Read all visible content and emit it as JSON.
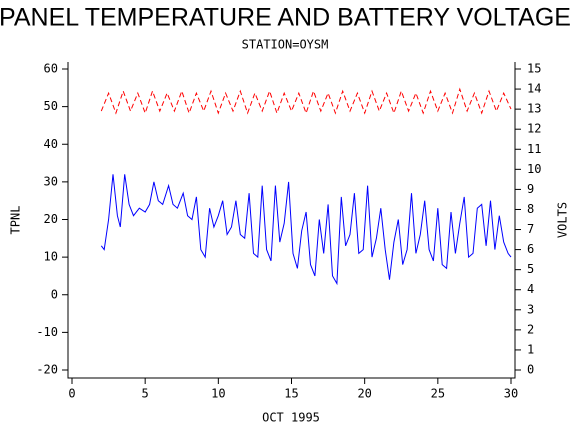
{
  "chart_data": {
    "type": "line",
    "title": "PANEL TEMPERATURE AND BATTERY VOLTAGE",
    "subtitle": "STATION=OYSM",
    "xlabel": "OCT 1995",
    "ylabel": "TPNL",
    "y2label": "VOLTS",
    "xlim": [
      0,
      30
    ],
    "xticks": [
      0,
      5,
      10,
      15,
      20,
      25,
      30
    ],
    "ylim": [
      -20,
      60
    ],
    "yticks": [
      -20,
      -10,
      0,
      10,
      20,
      30,
      40,
      50,
      60
    ],
    "y2lim": [
      0,
      15
    ],
    "y2ticks": [
      0,
      1,
      2,
      3,
      4,
      5,
      6,
      7,
      8,
      9,
      10,
      11,
      12,
      13,
      14,
      15
    ],
    "series": [
      {
        "name": "TPNL",
        "color": "#0000ff",
        "dash": false,
        "x": [
          2.0,
          2.2,
          2.5,
          2.8,
          3.1,
          3.3,
          3.6,
          3.9,
          4.2,
          4.6,
          5.0,
          5.3,
          5.6,
          5.9,
          6.2,
          6.6,
          6.9,
          7.2,
          7.6,
          7.9,
          8.2,
          8.5,
          8.8,
          9.1,
          9.4,
          9.7,
          10.0,
          10.3,
          10.6,
          10.9,
          11.2,
          11.5,
          11.8,
          12.1,
          12.4,
          12.7,
          13.0,
          13.3,
          13.6,
          13.9,
          14.2,
          14.5,
          14.8,
          15.1,
          15.4,
          15.7,
          16.0,
          16.3,
          16.6,
          16.9,
          17.2,
          17.5,
          17.8,
          18.1,
          18.4,
          18.7,
          19.0,
          19.3,
          19.6,
          19.9,
          20.2,
          20.5,
          20.8,
          21.1,
          21.4,
          21.7,
          22.0,
          22.3,
          22.6,
          22.9,
          23.2,
          23.5,
          23.8,
          24.1,
          24.4,
          24.7,
          25.0,
          25.3,
          25.6,
          25.9,
          26.2,
          26.5,
          26.8,
          27.1,
          27.4,
          27.7,
          28.0,
          28.3,
          28.6,
          28.9,
          29.2,
          29.5,
          29.8,
          30.0
        ],
        "values": [
          13,
          12,
          20,
          32,
          21,
          18,
          32,
          24,
          21,
          23,
          22,
          24,
          30,
          25,
          24,
          29,
          24,
          23,
          27,
          21,
          20,
          26,
          12,
          10,
          23,
          18,
          21,
          25,
          16,
          18,
          25,
          16,
          15,
          27,
          11,
          10,
          29,
          12,
          9,
          29,
          14,
          19,
          30,
          11,
          7,
          17,
          22,
          8,
          5,
          20,
          11,
          24,
          5,
          3,
          26,
          13,
          16,
          27,
          11,
          12,
          29,
          10,
          15,
          23,
          12,
          4,
          14,
          20,
          8,
          12,
          27,
          11,
          16,
          25,
          12,
          9,
          23,
          8,
          7,
          22,
          11,
          19,
          26,
          10,
          11,
          23,
          24,
          13,
          25,
          12,
          21,
          14,
          11,
          10
        ]
      },
      {
        "name": "VOLTS",
        "color": "#ff0000",
        "dash": true,
        "axis": "y2",
        "x": [
          2.0,
          2.5,
          3.0,
          3.5,
          4.0,
          4.5,
          5.0,
          5.5,
          6.0,
          6.5,
          7.0,
          7.5,
          8.0,
          8.5,
          9.0,
          9.5,
          10.0,
          10.5,
          11.0,
          11.5,
          12.0,
          12.5,
          13.0,
          13.5,
          14.0,
          14.5,
          15.0,
          15.5,
          16.0,
          16.5,
          17.0,
          17.5,
          18.0,
          18.5,
          19.0,
          19.5,
          20.0,
          20.5,
          21.0,
          21.5,
          22.0,
          22.5,
          23.0,
          23.5,
          24.0,
          24.5,
          25.0,
          25.5,
          26.0,
          26.5,
          27.0,
          27.5,
          28.0,
          28.5,
          29.0,
          29.5,
          30.0
        ],
        "values": [
          12.9,
          13.8,
          12.8,
          13.9,
          12.9,
          13.8,
          12.8,
          13.9,
          12.9,
          13.8,
          12.9,
          13.9,
          12.8,
          13.8,
          12.9,
          13.9,
          12.8,
          13.8,
          12.9,
          13.9,
          12.8,
          13.8,
          12.9,
          13.9,
          12.8,
          13.8,
          12.9,
          13.8,
          12.8,
          13.9,
          12.9,
          13.8,
          12.8,
          13.9,
          12.9,
          13.8,
          12.8,
          13.9,
          12.9,
          13.8,
          12.8,
          13.9,
          12.9,
          13.8,
          12.8,
          13.9,
          12.9,
          13.8,
          12.8,
          14.0,
          12.9,
          13.8,
          12.8,
          13.9,
          12.9,
          13.8,
          13.0
        ]
      }
    ]
  }
}
